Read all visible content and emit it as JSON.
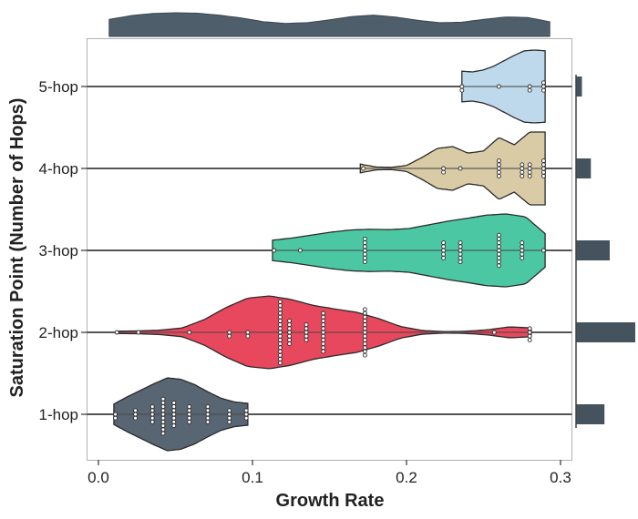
{
  "chart_data": {
    "type": "violin",
    "xlabel": "Growth Rate",
    "ylabel": "Saturation Point (Number of Hops)",
    "xlim": [
      -0.008,
      0.305
    ],
    "x_ticks": [
      0.0,
      0.1,
      0.2,
      0.3
    ],
    "x_tick_labels": [
      "0.0",
      "0.1",
      "0.2",
      "0.3"
    ],
    "grid": false,
    "legend": "none",
    "marginal_top": "density",
    "marginal_right": "histogram",
    "categories": [
      "1-hop",
      "2-hop",
      "3-hop",
      "4-hop",
      "5-hop"
    ],
    "series": [
      {
        "category": "1-hop",
        "color": "#4a5866",
        "values": [
          0.011,
          0.011,
          0.024,
          0.024,
          0.024,
          0.035,
          0.035,
          0.035,
          0.035,
          0.035,
          0.042,
          0.042,
          0.042,
          0.042,
          0.042,
          0.042,
          0.042,
          0.042,
          0.042,
          0.042,
          0.049,
          0.049,
          0.049,
          0.049,
          0.049,
          0.049,
          0.049,
          0.059,
          0.059,
          0.059,
          0.059,
          0.059,
          0.071,
          0.071,
          0.071,
          0.071,
          0.071,
          0.085,
          0.085,
          0.085,
          0.085,
          0.096,
          0.096,
          0.096
        ],
        "violin": {
          "xmin": 0.01,
          "xmax": 0.097,
          "widths": [
            0.28,
            0.48,
            0.66,
            0.84,
            1.0,
            0.96,
            0.82,
            0.62,
            0.44,
            0.34,
            0.3
          ],
          "bw": 0.01
        }
      },
      {
        "category": "2-hop",
        "color": "#e5384f",
        "values": [
          0.012,
          0.026,
          0.059,
          0.085,
          0.085,
          0.097,
          0.097,
          0.118,
          0.118,
          0.118,
          0.118,
          0.118,
          0.118,
          0.118,
          0.118,
          0.118,
          0.118,
          0.118,
          0.118,
          0.118,
          0.118,
          0.118,
          0.118,
          0.118,
          0.124,
          0.124,
          0.124,
          0.124,
          0.124,
          0.124,
          0.124,
          0.135,
          0.135,
          0.135,
          0.135,
          0.135,
          0.146,
          0.146,
          0.146,
          0.146,
          0.146,
          0.146,
          0.146,
          0.146,
          0.146,
          0.146,
          0.146,
          0.173,
          0.173,
          0.173,
          0.173,
          0.173,
          0.173,
          0.173,
          0.173,
          0.173,
          0.173,
          0.173,
          0.173,
          0.173,
          0.257,
          0.28,
          0.28,
          0.28,
          0.28
        ],
        "violin": {
          "xmin": 0.012,
          "xmax": 0.281,
          "widths": [
            0.03,
            0.04,
            0.06,
            0.12,
            0.35,
            0.68,
            0.94,
            1.0,
            0.9,
            0.74,
            0.64,
            0.55,
            0.38,
            0.16,
            0.05,
            0.02,
            0.03,
            0.07,
            0.15,
            0.12
          ],
          "bw": 0.015
        }
      },
      {
        "category": "3-hop",
        "color": "#3cc39b",
        "values": [
          0.114,
          0.131,
          0.173,
          0.173,
          0.173,
          0.173,
          0.173,
          0.173,
          0.173,
          0.224,
          0.224,
          0.224,
          0.224,
          0.224,
          0.235,
          0.235,
          0.235,
          0.235,
          0.235,
          0.235,
          0.26,
          0.26,
          0.26,
          0.26,
          0.26,
          0.26,
          0.26,
          0.26,
          0.26,
          0.275,
          0.275,
          0.275,
          0.275,
          0.275,
          0.289
        ],
        "violin": {
          "xmin": 0.113,
          "xmax": 0.29,
          "widths": [
            0.28,
            0.34,
            0.42,
            0.5,
            0.56,
            0.58,
            0.57,
            0.6,
            0.7,
            0.8,
            0.88,
            0.97,
            1.0,
            0.92,
            0.46
          ],
          "bw": 0.015
        }
      },
      {
        "category": "4-hop",
        "color": "#d6c79d",
        "values": [
          0.172,
          0.224,
          0.224,
          0.235,
          0.26,
          0.26,
          0.26,
          0.26,
          0.26,
          0.275,
          0.275,
          0.275,
          0.275,
          0.28,
          0.28,
          0.28,
          0.28,
          0.289,
          0.289,
          0.289,
          0.289,
          0.289
        ],
        "violin": {
          "xmin": 0.17,
          "xmax": 0.29,
          "widths": [
            0.12,
            0.04,
            0.03,
            0.08,
            0.3,
            0.55,
            0.6,
            0.42,
            0.48,
            0.85,
            0.65,
            1.0,
            1.0
          ],
          "bw": 0.01
        }
      },
      {
        "category": "5-hop",
        "color": "#b9d6ea",
        "values": [
          0.236,
          0.236,
          0.26,
          0.28,
          0.28,
          0.289,
          0.289,
          0.289
        ],
        "violin": {
          "xmin": 0.236,
          "xmax": 0.29,
          "widths": [
            0.42,
            0.4,
            0.45,
            0.55,
            0.7,
            0.85,
            0.98,
            1.0,
            0.98
          ],
          "bw": 0.01
        }
      }
    ],
    "marginal_right_values": [
      0.48,
      1.0,
      0.57,
      0.25,
      0.1
    ],
    "marginal_top_profile": [
      0.72,
      0.88,
      0.97,
      1.0,
      0.98,
      0.9,
      0.78,
      0.62,
      0.55,
      0.58,
      0.7,
      0.84,
      0.9,
      0.82,
      0.68,
      0.58,
      0.6,
      0.72,
      0.82,
      0.8,
      0.62
    ]
  }
}
